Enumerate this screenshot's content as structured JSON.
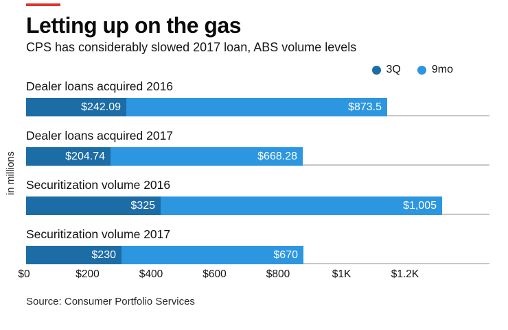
{
  "accent_color": "#e0342c",
  "header": {
    "title": "Letting up on the gas",
    "subtitle": "CPS has considerably slowed 2017 loan, ABS volume levels"
  },
  "legend": [
    {
      "label": "3Q",
      "color": "#1c6ca6"
    },
    {
      "label": "9mo",
      "color": "#2d96e0"
    }
  ],
  "y_axis_label": "in millions",
  "source": "Source: Consumer Portfolio Services",
  "chart_data": {
    "type": "bar",
    "orientation": "horizontal",
    "unit": "USD millions",
    "title": "Letting up on the gas",
    "subtitle": "CPS has considerably slowed 2017 loan, ABS volume levels",
    "ylabel": "in millions",
    "categories": [
      "Dealer loans acquired 2016",
      "Dealer loans acquired 2017",
      "Securitization volume 2016",
      "Securitization volume 2017"
    ],
    "series": [
      {
        "name": "3Q",
        "color": "#1c6ca6",
        "values": [
          242.09,
          204.74,
          325,
          230
        ],
        "labels": [
          "$242.09",
          "$204.74",
          "$325",
          "$230"
        ]
      },
      {
        "name": "9mo",
        "color": "#2d96e0",
        "values": [
          873.5,
          668.28,
          1005,
          670
        ],
        "labels": [
          "$873.5",
          "$668.28",
          "$1,005",
          "$670"
        ]
      }
    ],
    "x_ticks": [
      "$0",
      "$200",
      "$400",
      "$600",
      "$800",
      "$1K",
      "$1.2K"
    ],
    "x_tick_values": [
      0,
      200,
      400,
      600,
      800,
      1000,
      1200
    ],
    "xlim": [
      0,
      1120
    ],
    "grid": false,
    "legend_position": "top-right",
    "track_color": "#c7c7c7"
  }
}
